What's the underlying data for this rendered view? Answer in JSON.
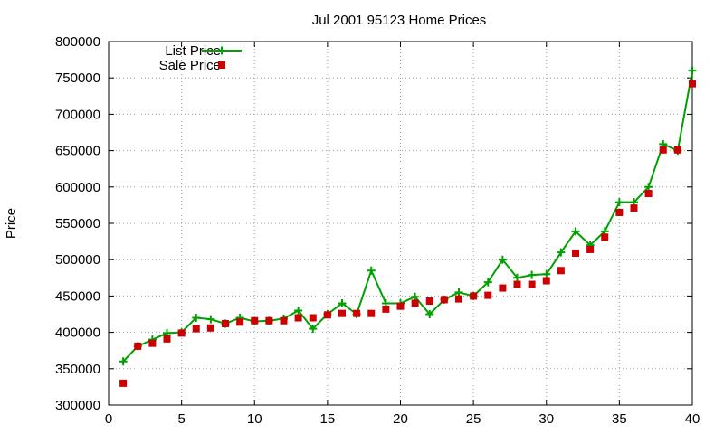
{
  "chart_data": {
    "type": "line",
    "title": "Jul 2001 95123 Home Prices",
    "xlabel": "",
    "ylabel": "Price",
    "xlim": [
      0,
      40
    ],
    "ylim": [
      300000,
      800000
    ],
    "x_ticks": [
      0,
      5,
      10,
      15,
      20,
      25,
      30,
      35,
      40
    ],
    "y_ticks": [
      300000,
      350000,
      400000,
      450000,
      500000,
      550000,
      600000,
      650000,
      700000,
      750000,
      800000
    ],
    "grid": true,
    "legend_position": "top-left",
    "series": [
      {
        "name": "List Price",
        "style": "line+cross-markers",
        "color": "#00a000",
        "x": [
          1,
          2,
          3,
          4,
          5,
          6,
          7,
          8,
          9,
          10,
          11,
          12,
          13,
          14,
          15,
          16,
          17,
          18,
          19,
          20,
          21,
          22,
          23,
          24,
          25,
          26,
          27,
          28,
          29,
          30,
          31,
          32,
          33,
          34,
          35,
          36,
          37,
          38,
          39,
          40
        ],
        "values": [
          360000,
          381000,
          390000,
          399000,
          400000,
          420000,
          418000,
          412000,
          420000,
          415000,
          416000,
          419000,
          430000,
          405000,
          425000,
          440000,
          425000,
          485000,
          440000,
          440000,
          449000,
          425000,
          445000,
          455000,
          450000,
          469000,
          500000,
          475000,
          479000,
          480000,
          510000,
          539000,
          520000,
          539000,
          579000,
          579000,
          600000,
          659000,
          650000,
          760000
        ]
      },
      {
        "name": "Sale Price",
        "style": "square-markers",
        "color": "#cc0000",
        "x": [
          1,
          2,
          3,
          4,
          5,
          6,
          7,
          8,
          9,
          10,
          11,
          12,
          13,
          14,
          15,
          16,
          17,
          18,
          19,
          20,
          21,
          22,
          23,
          24,
          25,
          26,
          27,
          28,
          29,
          30,
          31,
          32,
          33,
          34,
          35,
          36,
          37,
          38,
          39,
          40
        ],
        "values": [
          330000,
          381000,
          385000,
          391000,
          399000,
          405000,
          406000,
          412000,
          414000,
          416000,
          416000,
          416000,
          420000,
          420000,
          424000,
          426000,
          426000,
          426000,
          432000,
          436000,
          440000,
          443000,
          445000,
          446000,
          450000,
          451000,
          461000,
          466000,
          466000,
          471000,
          485000,
          509000,
          514000,
          531000,
          565000,
          571000,
          591000,
          651000,
          651000,
          742000
        ]
      }
    ]
  }
}
